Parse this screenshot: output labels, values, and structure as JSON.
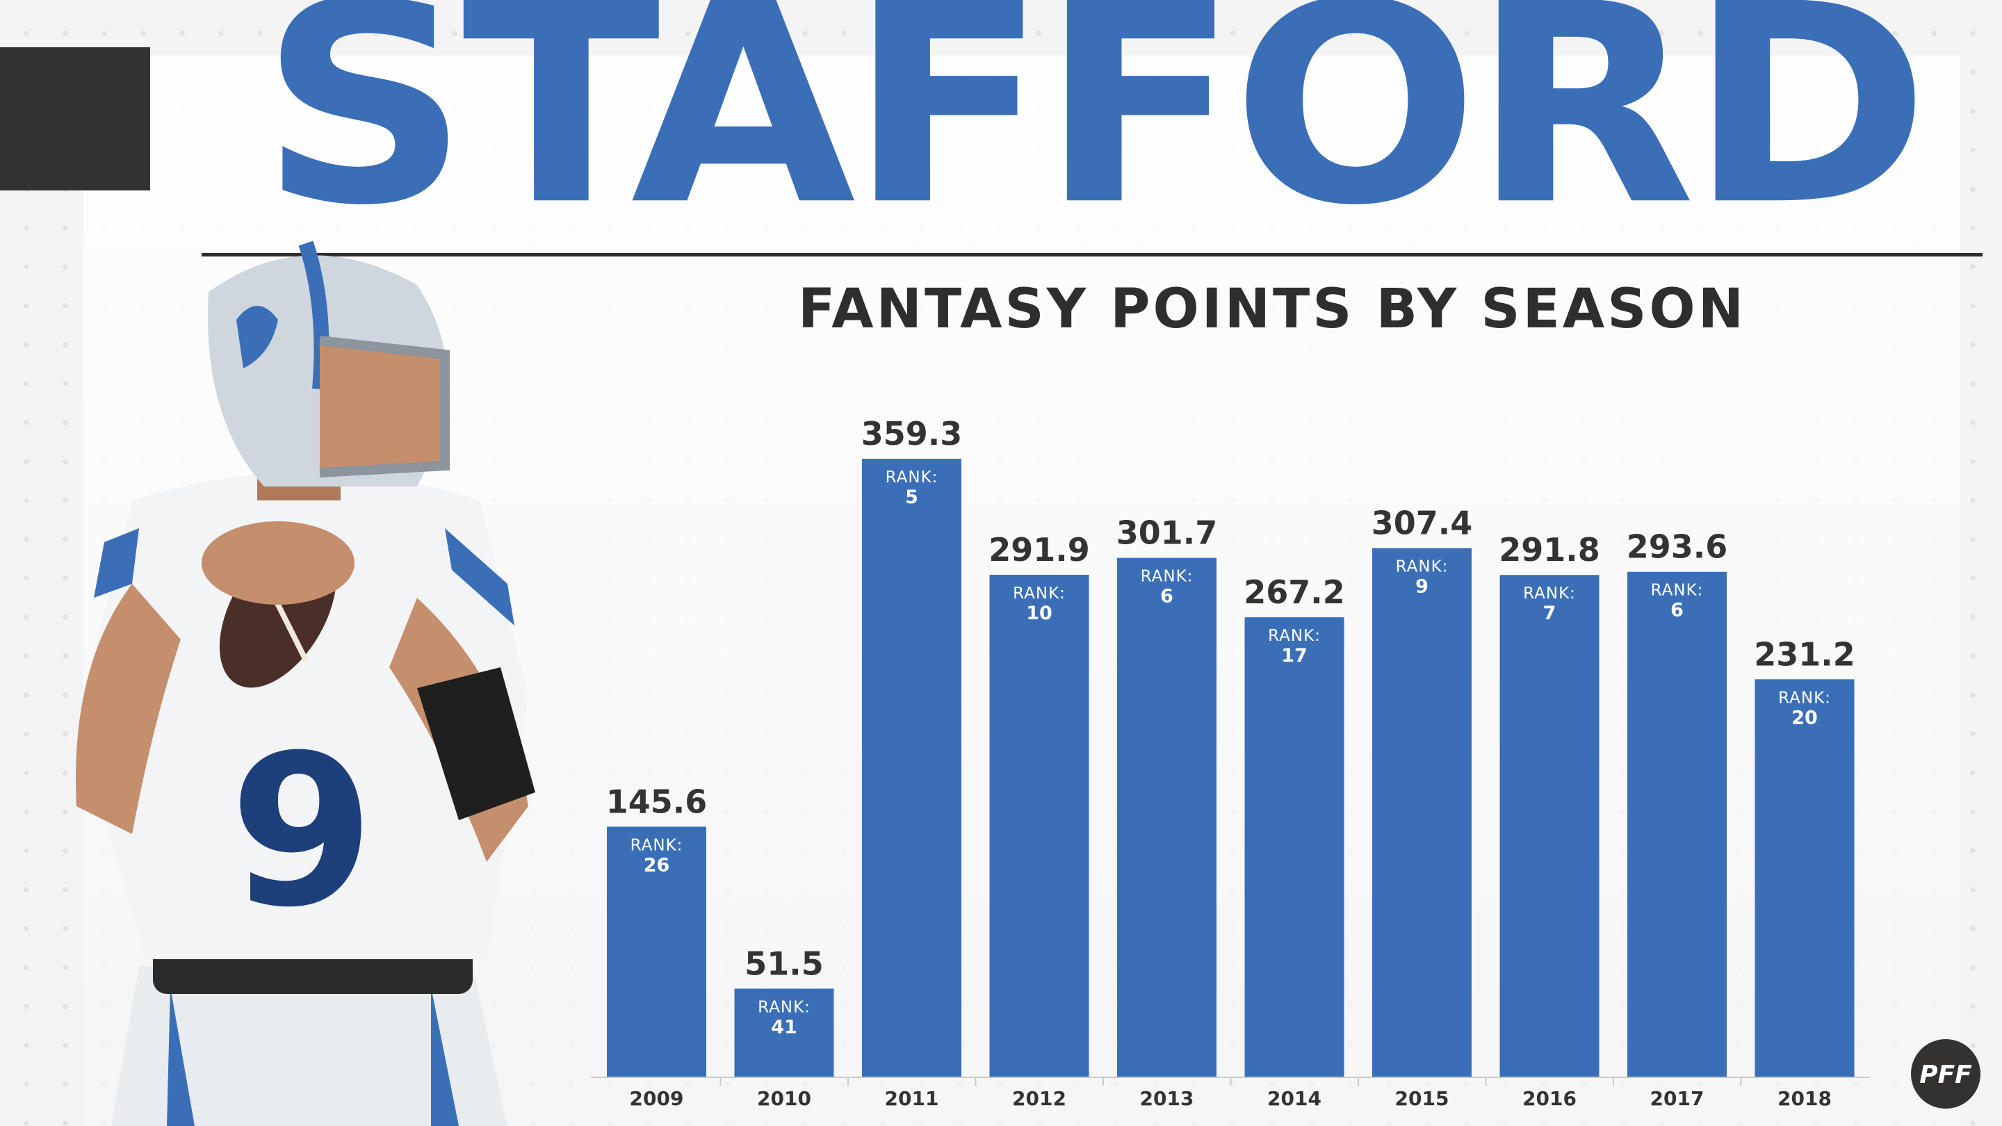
{
  "header": {
    "player_name": "STAFFORD",
    "subtitle": "FANTASY POINTS BY SEASON"
  },
  "logo": {
    "text": "PFF"
  },
  "colors": {
    "accent": "#3a6fb7",
    "dark": "#333231",
    "text": "#333333"
  },
  "chart_data": {
    "type": "bar",
    "title": "FANTASY POINTS BY SEASON",
    "xlabel": "",
    "ylabel": "",
    "ylim": [
      0,
      400
    ],
    "grid": false,
    "rank_prefix": "RANK:",
    "categories": [
      "2009",
      "2010",
      "2011",
      "2012",
      "2013",
      "2014",
      "2015",
      "2016",
      "2017",
      "2018"
    ],
    "values": [
      145.6,
      51.5,
      359.3,
      291.9,
      301.7,
      267.2,
      307.4,
      291.8,
      293.6,
      231.2
    ],
    "value_labels": [
      "145.6",
      "51.5",
      "359.3",
      "291.9",
      "301.7",
      "267.2",
      "307.4",
      "291.8",
      "293.6",
      "231.2"
    ],
    "ranks": [
      "26",
      "41",
      "5",
      "10",
      "6",
      "17",
      "9",
      "7",
      "6",
      "20"
    ]
  }
}
